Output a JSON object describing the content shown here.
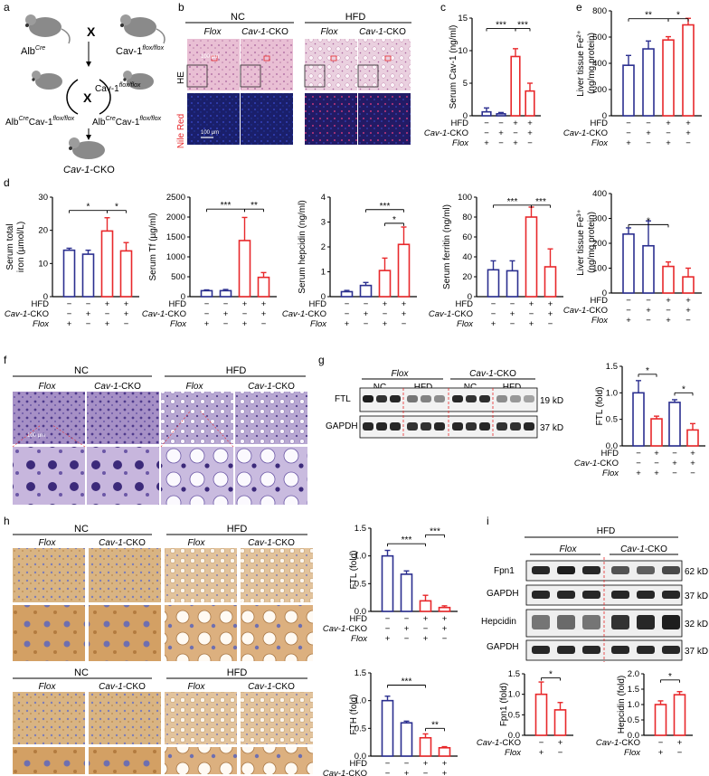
{
  "panel_labels": [
    "a",
    "b",
    "c",
    "d",
    "e",
    "f",
    "g",
    "h",
    "i"
  ],
  "colors": {
    "nc": "#2b2f8f",
    "hfd": "#e8282b",
    "ink": "#000000",
    "divider": "#e8282b"
  },
  "panel_a": {
    "mouse1": "Alb",
    "mouse1_sup": "Cre",
    "mouse2": "Cav-1",
    "mouse2_sup": "flox/flox",
    "cross": "X",
    "mouse3": "Alb",
    "mouse3_sup": "Cre",
    "mouse3_mid": "Cav-1",
    "mouse3_sup2": "flox/flox",
    "mouse4": "Alb",
    "mouse4_sup": "Cre",
    "mouse4_mid": "Cav-1",
    "mouse4_sup2": "flox/flox",
    "mouse5": "Cav-1",
    "mouse5_mid": "flox/flox",
    "result": "Cav-1",
    "result_suffix": "-CKO"
  },
  "panel_b": {
    "groups": [
      "NC",
      "HFD"
    ],
    "columns": [
      "Flox",
      "Cav-1-CKO",
      "Flox",
      "Cav-1-CKO"
    ],
    "rows": [
      "HE",
      "Nile Red"
    ],
    "scale_1": "100 μm",
    "scale_2": "100 μm"
  },
  "conditions": {
    "hfd": "HFD",
    "cko": "Cav-1-CKO",
    "cko_it": "Cav-1",
    "cko_suffix": "-CKO",
    "flox": "Flox",
    "hfd4": [
      "−",
      "−",
      "+",
      "+"
    ],
    "cko4": [
      "−",
      "+",
      "−",
      "+"
    ],
    "flox4": [
      "+",
      "−",
      "+",
      "−"
    ]
  },
  "chart_data": [
    {
      "id": "c",
      "type": "bar",
      "ylabel": "Serum Cav-1 (ng/ml)",
      "ylim": [
        0,
        15
      ],
      "yticks": [
        0,
        5,
        10,
        15
      ],
      "values": [
        0.6,
        0.3,
        9.1,
        3.8
      ],
      "errors": [
        0.6,
        0.2,
        1.2,
        1.2
      ],
      "colors": [
        "nc",
        "nc",
        "hfd",
        "hfd"
      ],
      "sig": [
        "***",
        "***"
      ]
    },
    {
      "id": "e1",
      "type": "bar",
      "ylabel_l1": "Liver tissue Fe²⁺",
      "ylabel_l2": "(ng/mg protein)",
      "ylim": [
        0,
        800
      ],
      "yticks": [
        0,
        200,
        400,
        600,
        800
      ],
      "values": [
        385,
        510,
        578,
        693
      ],
      "errors": [
        75,
        60,
        25,
        50
      ],
      "colors": [
        "nc",
        "nc",
        "hfd",
        "hfd"
      ],
      "sig": [
        "**",
        "*"
      ]
    },
    {
      "id": "e2",
      "type": "bar",
      "ylabel_l1": "Liver tissue Fe³⁺",
      "ylabel_l2": "(ng/mg protein)",
      "ylim": [
        0,
        400
      ],
      "yticks": [
        0,
        100,
        200,
        300,
        400
      ],
      "values": [
        237,
        190,
        107,
        65
      ],
      "errors": [
        25,
        100,
        18,
        35
      ],
      "colors": [
        "nc",
        "nc",
        "hfd",
        "hfd"
      ],
      "sig": [
        "*"
      ]
    },
    {
      "id": "d1",
      "type": "bar",
      "ylabel_l1": "Serum total",
      "ylabel_l2": "iron (µmol/L)",
      "ylim": [
        0,
        30
      ],
      "yticks": [
        0,
        10,
        20,
        30
      ],
      "values": [
        14,
        12.8,
        19.8,
        13.8
      ],
      "errors": [
        0.6,
        1.2,
        4,
        2.5
      ],
      "colors": [
        "nc",
        "nc",
        "hfd",
        "hfd"
      ],
      "sig": [
        "*",
        "*"
      ]
    },
    {
      "id": "d2",
      "type": "bar",
      "ylabel": "Serum Tf (µg/ml)",
      "ylim": [
        0,
        2500
      ],
      "yticks": [
        0,
        500,
        1000,
        1500,
        2000,
        2500
      ],
      "values": [
        150,
        150,
        1410,
        485
      ],
      "errors": [
        20,
        30,
        580,
        120
      ],
      "colors": [
        "nc",
        "nc",
        "hfd",
        "hfd"
      ],
      "sig": [
        "***",
        "**"
      ]
    },
    {
      "id": "d3",
      "type": "bar",
      "ylabel": "Serum hepcidin (ng/ml)",
      "ylim": [
        0,
        4
      ],
      "yticks": [
        0,
        1,
        2,
        3,
        4
      ],
      "values": [
        0.2,
        0.45,
        1.05,
        2.1
      ],
      "errors": [
        0.05,
        0.12,
        0.5,
        0.7
      ],
      "colors": [
        "nc",
        "nc",
        "hfd",
        "hfd"
      ],
      "sig": [
        "***",
        "*"
      ]
    },
    {
      "id": "d4",
      "type": "bar",
      "ylabel": "Serum ferritin (ng/ml)",
      "ylim": [
        0,
        100
      ],
      "yticks": [
        0,
        20,
        40,
        60,
        80,
        100
      ],
      "values": [
        27,
        26,
        80,
        30
      ],
      "errors": [
        9,
        10,
        10,
        18
      ],
      "colors": [
        "nc",
        "nc",
        "hfd",
        "hfd"
      ],
      "sig": [
        "***",
        "***"
      ]
    },
    {
      "id": "g",
      "type": "bar",
      "ylabel": "FTL (fold)",
      "ylim": [
        0,
        1.5
      ],
      "yticks": [
        0.0,
        0.5,
        1.0,
        1.5
      ],
      "values": [
        1.0,
        0.51,
        0.82,
        0.3
      ],
      "errors": [
        0.23,
        0.05,
        0.05,
        0.12
      ],
      "colors": [
        "nc",
        "hfd",
        "nc",
        "hfd"
      ],
      "sig": [
        "*",
        "*"
      ],
      "cond_hfd": [
        "−",
        "+",
        "−",
        "+"
      ],
      "cond_cko": [
        "−",
        "−",
        "+",
        "+"
      ],
      "cond_flox": [
        "+",
        "+",
        "−",
        "−"
      ]
    },
    {
      "id": "h1",
      "type": "bar",
      "ylabel": "FTL (fold)",
      "ylim": [
        0,
        1.5
      ],
      "yticks": [
        0.0,
        0.5,
        1.0,
        1.5
      ],
      "values": [
        1.0,
        0.67,
        0.19,
        0.07
      ],
      "errors": [
        0.1,
        0.06,
        0.1,
        0.03
      ],
      "colors": [
        "nc",
        "nc",
        "hfd",
        "hfd"
      ],
      "sig": [
        "***",
        "***"
      ]
    },
    {
      "id": "h2",
      "type": "bar",
      "ylabel": "FTH (fold)",
      "ylim": [
        0,
        1.5
      ],
      "yticks": [
        0.0,
        0.5,
        1.0,
        1.5
      ],
      "values": [
        1.0,
        0.6,
        0.33,
        0.15
      ],
      "errors": [
        0.08,
        0.03,
        0.07,
        0.02
      ],
      "colors": [
        "nc",
        "nc",
        "hfd",
        "hfd"
      ],
      "sig": [
        "***",
        "**"
      ]
    },
    {
      "id": "i1",
      "type": "bar",
      "ylabel": "Fpn1 (fold)",
      "ylim": [
        0,
        1.5
      ],
      "yticks": [
        0.0,
        0.5,
        1.0,
        1.5
      ],
      "values": [
        1.0,
        0.62
      ],
      "errors": [
        0.3,
        0.18
      ],
      "colors": [
        "hfd",
        "hfd"
      ],
      "sig": [
        "*"
      ],
      "cond_cko": [
        "−",
        "+"
      ],
      "cond_flox": [
        "+",
        "−"
      ]
    },
    {
      "id": "i2",
      "type": "bar",
      "ylabel": "Hepcidin (fold)",
      "ylim": [
        0,
        2
      ],
      "yticks": [
        0.0,
        0.5,
        1.0,
        1.5,
        2.0
      ],
      "values": [
        1.0,
        1.32
      ],
      "errors": [
        0.12,
        0.1
      ],
      "colors": [
        "hfd",
        "hfd"
      ],
      "sig": [
        "*"
      ],
      "cond_cko": [
        "−",
        "+"
      ],
      "cond_flox": [
        "+",
        "−"
      ]
    }
  ],
  "panel_f": {
    "groups": [
      "NC",
      "HFD"
    ],
    "columns": [
      "Flox",
      "Cav-1-CKO",
      "Flox",
      "Cav-1-CKO"
    ],
    "scale": "100 μm"
  },
  "panel_g": {
    "groups": [
      "Flox",
      "Cav-1-CKO"
    ],
    "subgroups": [
      "NC",
      "HFD",
      "NC",
      "HFD"
    ],
    "bands": [
      "FTL",
      "GAPDH"
    ],
    "sizes": [
      "19 kD",
      "37 kD"
    ]
  },
  "panel_h": {
    "groups": [
      "NC",
      "HFD"
    ],
    "columns": [
      "Flox",
      "Cav-1-CKO",
      "Flox",
      "Cav-1-CKO"
    ]
  },
  "panel_i": {
    "title": "HFD",
    "groups": [
      "Flox",
      "Cav-1-CKO"
    ],
    "bands": [
      "Fpn1",
      "GAPDH",
      "Hepcidin",
      "GAPDH"
    ],
    "sizes": [
      "62 kD",
      "37 kD",
      "32 kD",
      "37 kD"
    ]
  }
}
